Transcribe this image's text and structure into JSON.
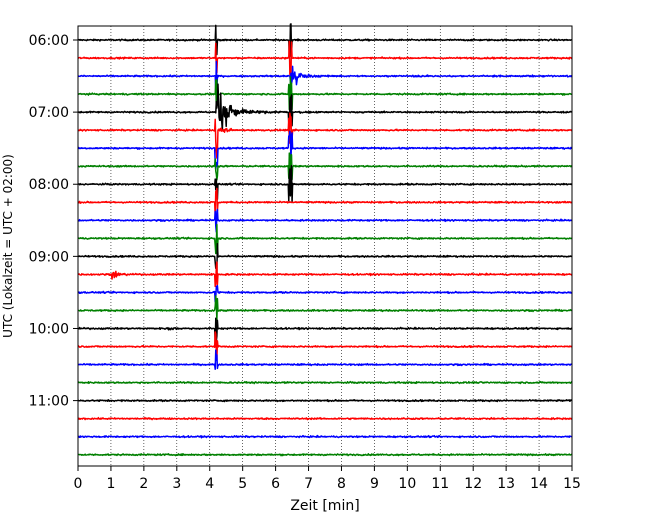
{
  "chart_data": {
    "type": "line",
    "title": "",
    "xlabel": "Zeit  [min]",
    "ylabel": "UTC (Lokalzeit = UTC + 02:00)",
    "xlim": [
      0,
      15
    ],
    "x_ticks": [
      "0",
      "1",
      "2",
      "3",
      "4",
      "5",
      "6",
      "7",
      "8",
      "9",
      "10",
      "11",
      "12",
      "13",
      "14",
      "15"
    ],
    "y_ticks": [
      "06:00",
      "07:00",
      "08:00",
      "09:00",
      "10:00",
      "11:00"
    ],
    "y_tick_rows": [
      0,
      4,
      8,
      12,
      16,
      20
    ],
    "grid": "vertical-dotted",
    "trace_count": 24,
    "trace_interval_min": 15,
    "colors": [
      "#000000",
      "#ff0000",
      "#0000ff",
      "#008000"
    ],
    "events": [
      {
        "name": "quake-main",
        "start_row": 4,
        "onset_min": 4.2,
        "peak_min": 4.3,
        "max_amp": 1.4,
        "tail_until_row": 18,
        "color_row": 4
      },
      {
        "name": "quake-second",
        "start_row": 2,
        "onset_min": 6.45,
        "peak_min": 6.55,
        "max_amp": 1.2,
        "tail_until_row": 8,
        "color_row": 2
      },
      {
        "name": "local-1",
        "row": 13,
        "at_min": 1.1,
        "amp": 0.5
      },
      {
        "name": "local-2",
        "row": 16,
        "at_min": 2.8,
        "amp": 0.2
      }
    ]
  }
}
